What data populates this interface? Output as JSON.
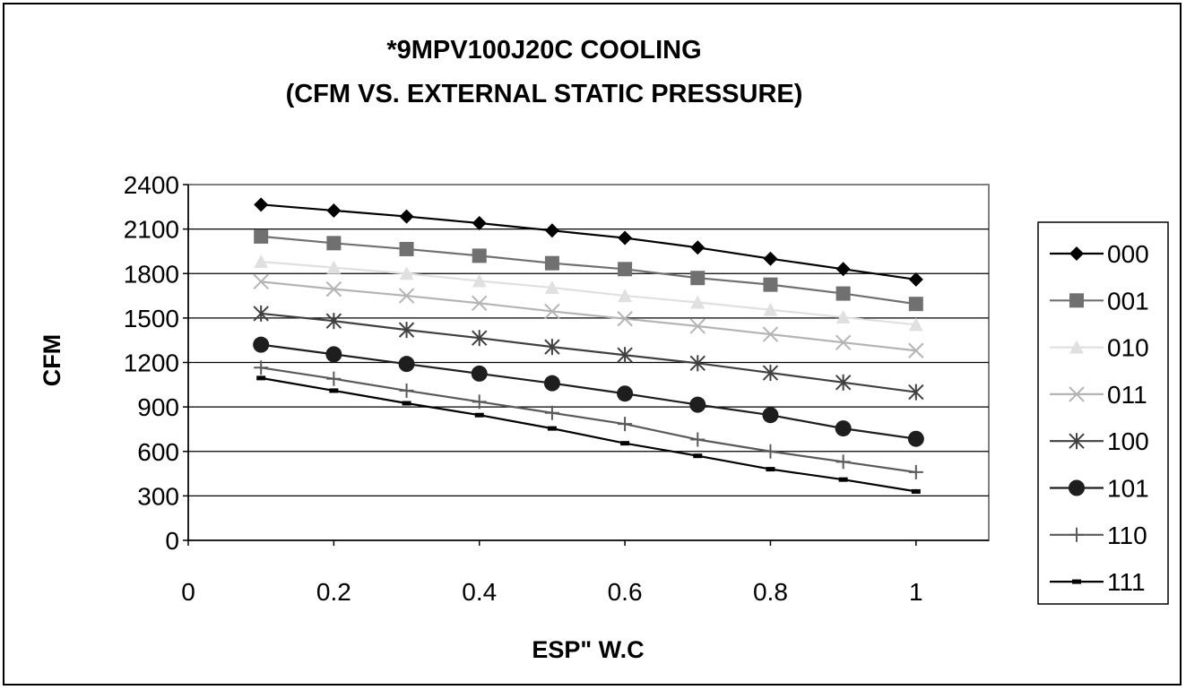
{
  "chart_data": {
    "type": "line",
    "title": [
      "*9MPV100J20C COOLING",
      "(CFM VS. EXTERNAL STATIC PRESSURE)"
    ],
    "xlabel": "ESP\" W.C",
    "ylabel": "CFM",
    "xlim": [
      0,
      1.1
    ],
    "ylim": [
      0,
      2400
    ],
    "x_ticks": [
      0,
      0.2,
      0.4,
      0.6,
      0.8,
      1
    ],
    "x_tick_labels": [
      "0",
      "0.2",
      "0.4",
      "0.6",
      "0.8",
      "1"
    ],
    "y_ticks": [
      0,
      300,
      600,
      900,
      1200,
      1500,
      1800,
      2100,
      2400
    ],
    "y_tick_labels": [
      "0",
      "300",
      "600",
      "900",
      "1200",
      "1500",
      "1800",
      "2100",
      "2400"
    ],
    "grid": "horizontal",
    "legend_position": "right",
    "x": [
      0.1,
      0.2,
      0.3,
      0.4,
      0.5,
      0.6,
      0.7,
      0.8,
      0.9,
      1.0
    ],
    "series": [
      {
        "name": "000",
        "marker": "diamond",
        "color": "#000000",
        "values": [
          2265,
          2225,
          2185,
          2140,
          2090,
          2040,
          1975,
          1900,
          1830,
          1760
        ]
      },
      {
        "name": "001",
        "marker": "square",
        "color": "#707070",
        "values": [
          2050,
          2005,
          1965,
          1920,
          1870,
          1830,
          1770,
          1725,
          1665,
          1595
        ]
      },
      {
        "name": "010",
        "marker": "triangle",
        "color": "#e0e0e0",
        "values": [
          1880,
          1840,
          1800,
          1750,
          1705,
          1650,
          1605,
          1555,
          1505,
          1455
        ]
      },
      {
        "name": "011",
        "marker": "x",
        "color": "#b4b4b4",
        "values": [
          1745,
          1695,
          1650,
          1600,
          1545,
          1495,
          1445,
          1390,
          1335,
          1280
        ]
      },
      {
        "name": "100",
        "marker": "star",
        "color": "#404040",
        "values": [
          1530,
          1480,
          1420,
          1365,
          1305,
          1250,
          1195,
          1130,
          1065,
          1000
        ]
      },
      {
        "name": "101",
        "marker": "circle",
        "color": "#1e1e1e",
        "values": [
          1320,
          1255,
          1190,
          1125,
          1060,
          990,
          915,
          845,
          755,
          685
        ]
      },
      {
        "name": "110",
        "marker": "plus",
        "color": "#5a5a5a",
        "values": [
          1165,
          1090,
          1010,
          935,
          860,
          785,
          680,
          600,
          530,
          460
        ]
      },
      {
        "name": "111",
        "marker": "dash",
        "color": "#000000",
        "values": [
          1095,
          1010,
          925,
          845,
          755,
          655,
          570,
          480,
          410,
          330
        ]
      }
    ]
  }
}
